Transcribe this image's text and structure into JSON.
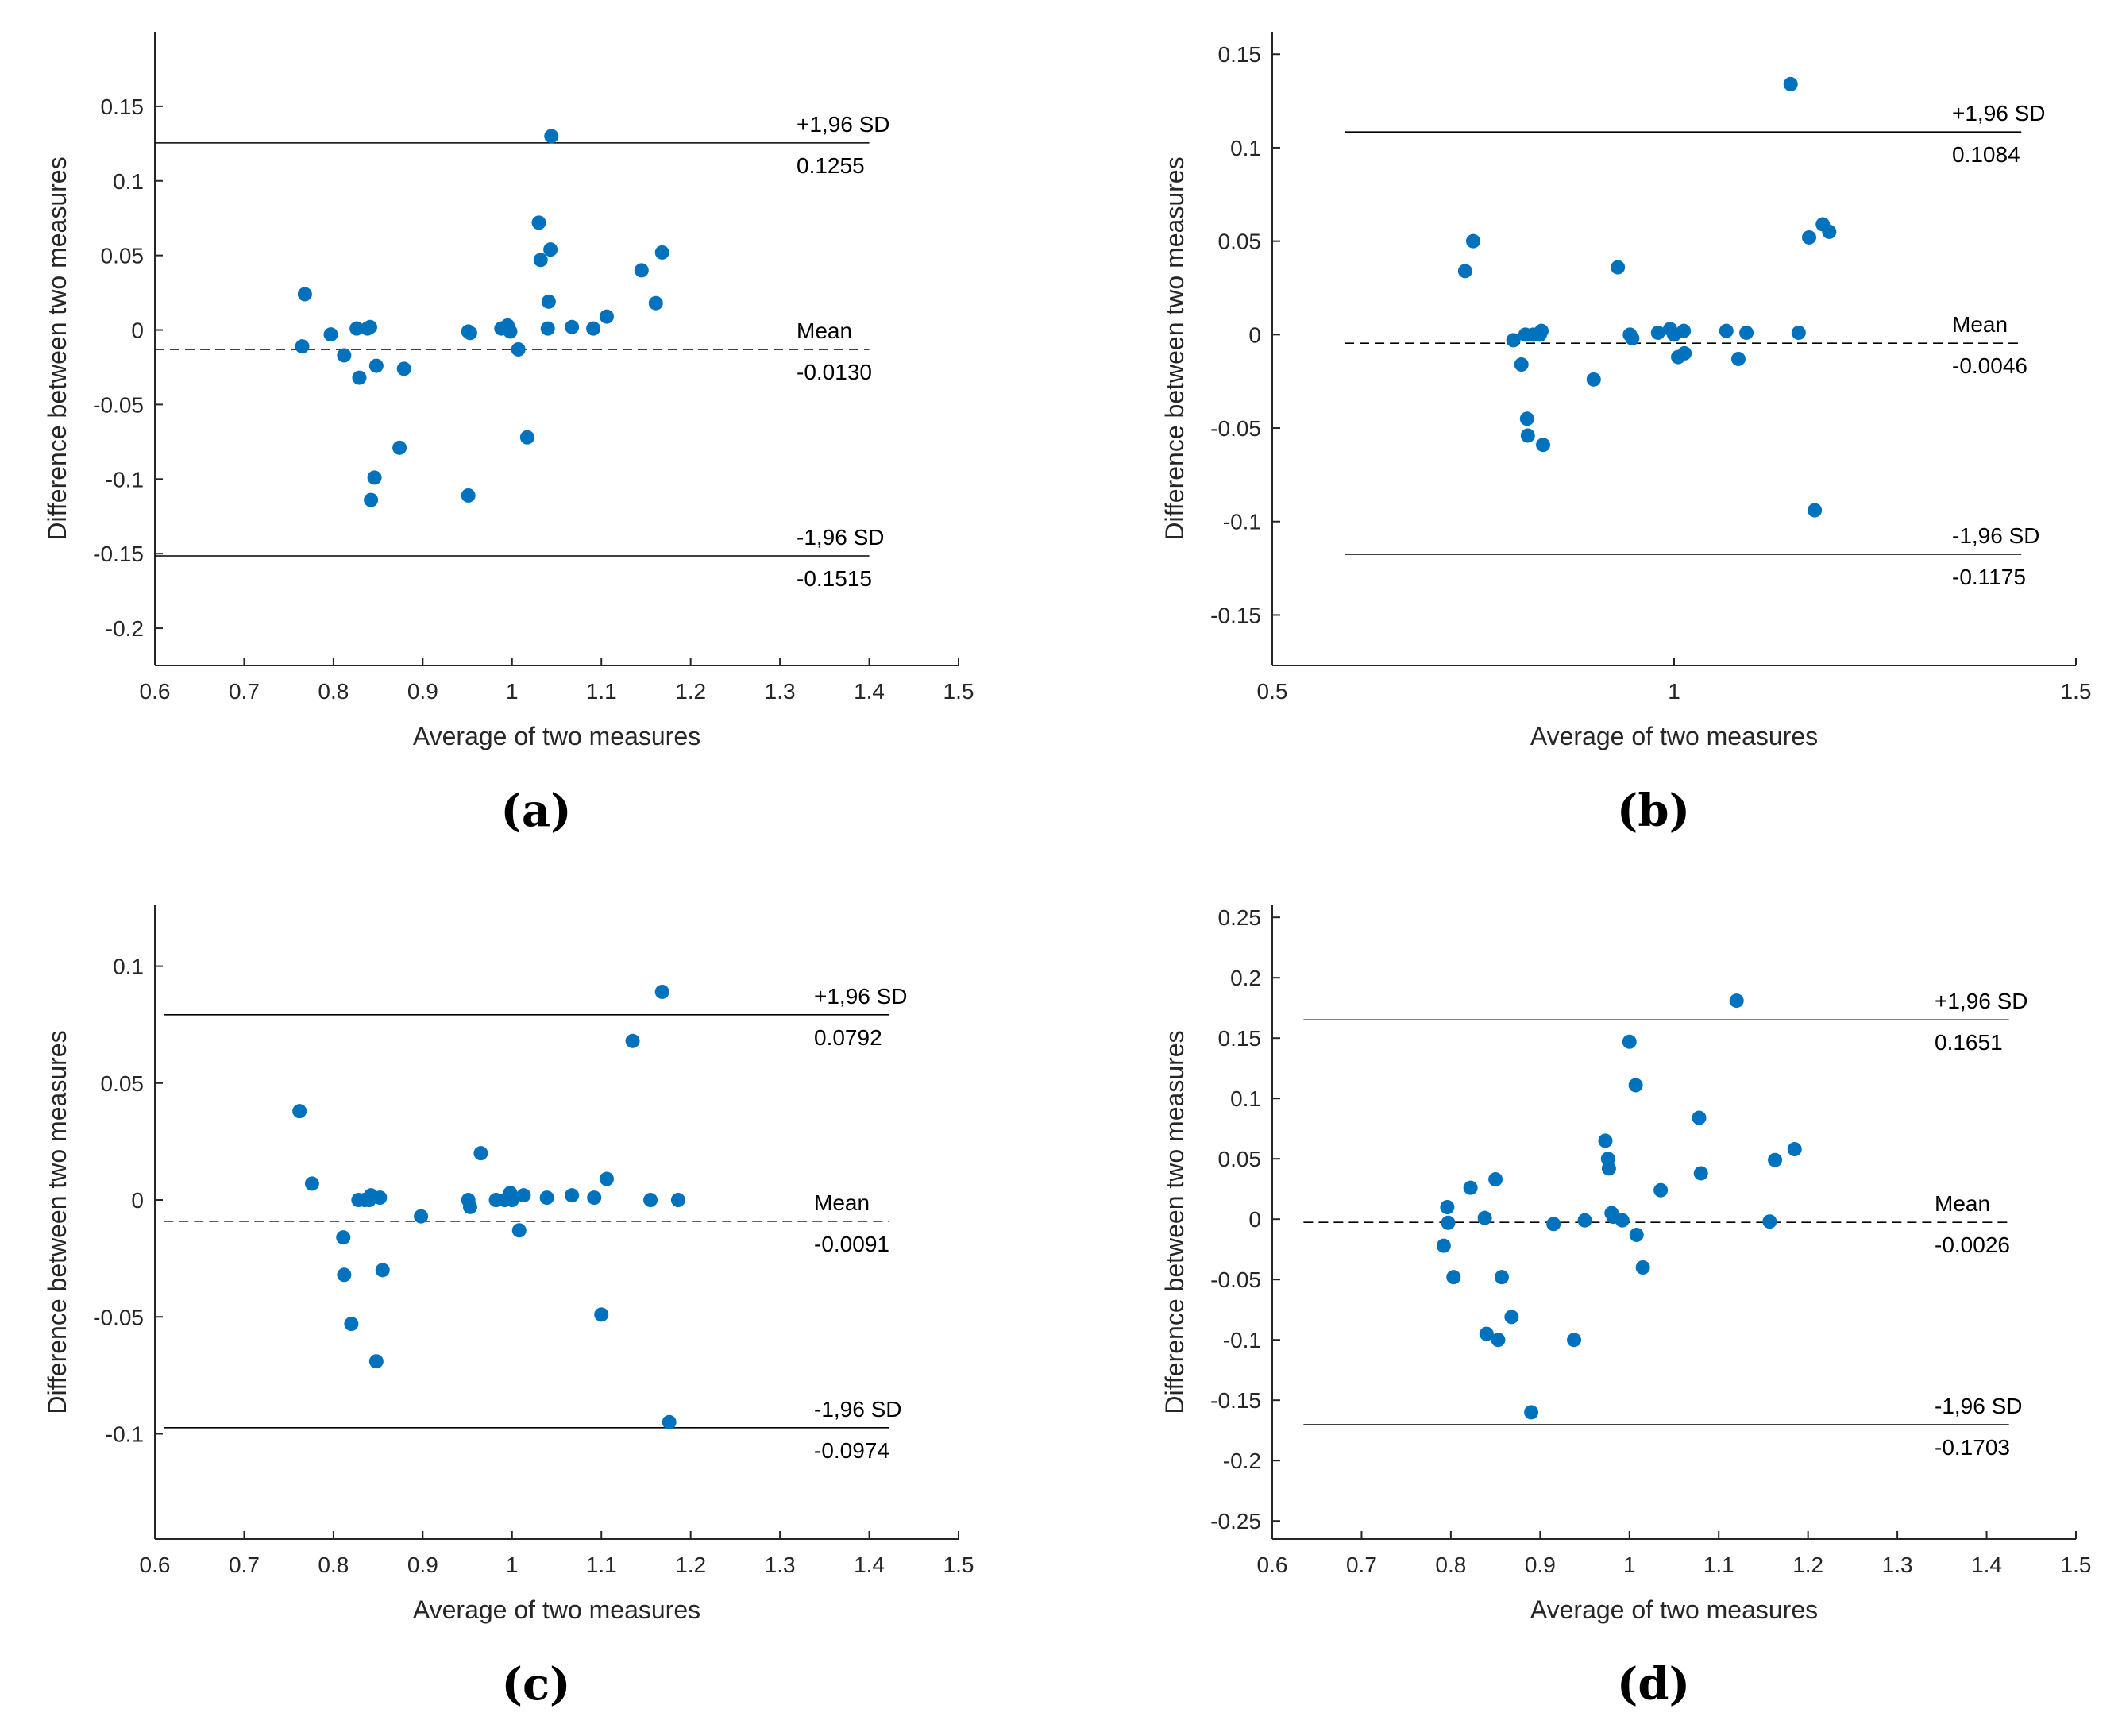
{
  "colors": {
    "point": "#0072BD",
    "axis": "#262626",
    "line": "#000000"
  },
  "chart_data": [
    {
      "type": "scatter",
      "panel_label": "(a)",
      "xlabel": "Average of two measures",
      "ylabel": "Difference between two measures",
      "xlim": [
        0.6,
        1.5
      ],
      "ylim": [
        -0.225,
        0.2
      ],
      "xticks": [
        0.6,
        0.7,
        0.8,
        0.9,
        1.0,
        1.1,
        1.2,
        1.3,
        1.4,
        1.5
      ],
      "xtick_labels": [
        "0.6",
        "0.7",
        "0.8",
        "0.9",
        "1",
        "1.1",
        "1.2",
        "1.3",
        "1.4",
        "1.5"
      ],
      "yticks": [
        0.15,
        0.1,
        0.05,
        0,
        -0.05,
        -0.1,
        -0.15,
        -0.2
      ],
      "ytick_labels": [
        "0.15",
        "0.1",
        "0.05",
        "0",
        "-0.05",
        "-0.1",
        "-0.15",
        "-0.2"
      ],
      "line_xrange": [
        0.6,
        1.4
      ],
      "upper": {
        "label": "+1,96 SD",
        "value": 0.1255,
        "value_label": "0.1255"
      },
      "mean": {
        "label": "Mean",
        "value": -0.013,
        "value_label": "-0.0130"
      },
      "lower": {
        "label": "-1,96 SD",
        "value": -0.1515,
        "value_label": "-0.1515"
      },
      "points": [
        [
          0.765,
          -0.011
        ],
        [
          0.768,
          0.024
        ],
        [
          0.797,
          -0.003
        ],
        [
          0.812,
          -0.017
        ],
        [
          0.826,
          0.001
        ],
        [
          0.829,
          -0.032
        ],
        [
          0.838,
          0.001
        ],
        [
          0.841,
          0.002
        ],
        [
          0.842,
          -0.114
        ],
        [
          0.846,
          -0.099
        ],
        [
          0.848,
          -0.024
        ],
        [
          0.874,
          -0.079
        ],
        [
          0.879,
          -0.026
        ],
        [
          0.951,
          -0.111
        ],
        [
          0.951,
          -0.001
        ],
        [
          0.953,
          -0.002
        ],
        [
          0.988,
          0.001
        ],
        [
          0.995,
          0.003
        ],
        [
          0.998,
          -0.001
        ],
        [
          1.007,
          -0.013
        ],
        [
          1.017,
          -0.072
        ],
        [
          1.03,
          0.072
        ],
        [
          1.032,
          0.047
        ],
        [
          1.04,
          0.001
        ],
        [
          1.041,
          0.019
        ],
        [
          1.043,
          0.054
        ],
        [
          1.044,
          0.13
        ],
        [
          1.067,
          0.002
        ],
        [
          1.091,
          0.001
        ],
        [
          1.106,
          0.009
        ],
        [
          1.145,
          0.04
        ],
        [
          1.161,
          0.018
        ],
        [
          1.168,
          0.052
        ]
      ]
    },
    {
      "type": "scatter",
      "panel_label": "(b)",
      "xlabel": "Average of two measures",
      "ylabel": "Difference between two measures",
      "xlim": [
        0.5,
        1.5
      ],
      "ylim": [
        -0.177,
        0.162
      ],
      "xticks": [
        0.5,
        1.0,
        1.5
      ],
      "xtick_labels": [
        "0.5",
        "1",
        "1.5"
      ],
      "yticks": [
        0.15,
        0.1,
        0.05,
        0,
        -0.05,
        -0.1,
        -0.15
      ],
      "ytick_labels": [
        "0.15",
        "0.1",
        "0.05",
        "0",
        "-0.05",
        "-0.1",
        "-0.15"
      ],
      "line_xrange": [
        0.59,
        1.432
      ],
      "upper": {
        "label": "+1,96 SD",
        "value": 0.1084,
        "value_label": "0.1084"
      },
      "mean": {
        "label": "Mean",
        "value": -0.0046,
        "value_label": "-0.0046"
      },
      "lower": {
        "label": "-1,96 SD",
        "value": -0.1175,
        "value_label": "-0.1175"
      },
      "points": [
        [
          0.74,
          0.034
        ],
        [
          0.75,
          0.05
        ],
        [
          0.8,
          -0.003
        ],
        [
          0.81,
          -0.016
        ],
        [
          0.815,
          0.0
        ],
        [
          0.817,
          -0.045
        ],
        [
          0.818,
          -0.054
        ],
        [
          0.825,
          0.0
        ],
        [
          0.833,
          0.0
        ],
        [
          0.835,
          0.002
        ],
        [
          0.837,
          -0.059
        ],
        [
          0.9,
          -0.024
        ],
        [
          0.93,
          0.036
        ],
        [
          0.945,
          0.0
        ],
        [
          0.948,
          -0.002
        ],
        [
          0.98,
          0.001
        ],
        [
          0.995,
          0.003
        ],
        [
          1.0,
          0.0
        ],
        [
          1.005,
          -0.012
        ],
        [
          1.012,
          0.002
        ],
        [
          1.013,
          -0.01
        ],
        [
          1.065,
          0.002
        ],
        [
          1.08,
          -0.013
        ],
        [
          1.09,
          0.001
        ],
        [
          1.145,
          0.134
        ],
        [
          1.155,
          0.001
        ],
        [
          1.168,
          0.052
        ],
        [
          1.175,
          -0.094
        ],
        [
          1.185,
          0.059
        ],
        [
          1.193,
          0.055
        ]
      ]
    },
    {
      "type": "scatter",
      "panel_label": "(c)",
      "xlabel": "Average of two measures",
      "ylabel": "Difference between two measures",
      "xlim": [
        0.6,
        1.5
      ],
      "ylim": [
        -0.145,
        0.126
      ],
      "xticks": [
        0.6,
        0.7,
        0.8,
        0.9,
        1.0,
        1.1,
        1.2,
        1.3,
        1.4,
        1.5
      ],
      "xtick_labels": [
        "0.6",
        "0.7",
        "0.8",
        "0.9",
        "1",
        "1.1",
        "1.2",
        "1.3",
        "1.4",
        "1.5"
      ],
      "yticks": [
        0.1,
        0.05,
        0,
        -0.05,
        -0.1
      ],
      "ytick_labels": [
        "0.1",
        "0.05",
        "0",
        "-0.05",
        "-0.1"
      ],
      "line_xrange": [
        0.61,
        1.422
      ],
      "upper": {
        "label": "+1,96 SD",
        "value": 0.0792,
        "value_label": "0.0792"
      },
      "mean": {
        "label": "Mean",
        "value": -0.0091,
        "value_label": "-0.0091"
      },
      "lower": {
        "label": "-1,96 SD",
        "value": -0.0974,
        "value_label": "-0.0974"
      },
      "points": [
        [
          0.762,
          0.038
        ],
        [
          0.776,
          0.007
        ],
        [
          0.811,
          -0.016
        ],
        [
          0.812,
          -0.032
        ],
        [
          0.82,
          -0.053
        ],
        [
          0.828,
          0.0
        ],
        [
          0.835,
          0.0
        ],
        [
          0.84,
          0.0
        ],
        [
          0.842,
          0.002
        ],
        [
          0.848,
          -0.069
        ],
        [
          0.852,
          0.001
        ],
        [
          0.855,
          -0.03
        ],
        [
          0.898,
          -0.007
        ],
        [
          0.951,
          0.0
        ],
        [
          0.953,
          -0.003
        ],
        [
          0.965,
          0.02
        ],
        [
          0.982,
          0.0
        ],
        [
          0.992,
          0.0
        ],
        [
          0.998,
          0.003
        ],
        [
          1.0,
          0.0
        ],
        [
          1.008,
          -0.013
        ],
        [
          1.013,
          0.002
        ],
        [
          1.039,
          0.001
        ],
        [
          1.067,
          0.002
        ],
        [
          1.092,
          0.001
        ],
        [
          1.1,
          -0.049
        ],
        [
          1.106,
          0.009
        ],
        [
          1.135,
          0.068
        ],
        [
          1.155,
          0.0
        ],
        [
          1.168,
          0.089
        ],
        [
          1.176,
          -0.095
        ],
        [
          1.186,
          0.0
        ]
      ]
    },
    {
      "type": "scatter",
      "panel_label": "(d)",
      "xlabel": "Average of two measures",
      "ylabel": "Difference between two measures",
      "xlim": [
        0.6,
        1.5
      ],
      "ylim": [
        -0.265,
        0.26
      ],
      "xticks": [
        0.6,
        0.7,
        0.8,
        0.9,
        1.0,
        1.1,
        1.2,
        1.3,
        1.4,
        1.5
      ],
      "xtick_labels": [
        "0.6",
        "0.7",
        "0.8",
        "0.9",
        "1",
        "1.1",
        "1.2",
        "1.3",
        "1.4",
        "1.5"
      ],
      "yticks": [
        0.25,
        0.2,
        0.15,
        0.1,
        0.05,
        0,
        -0.05,
        -0.1,
        -0.15,
        -0.2,
        -0.25
      ],
      "ytick_labels": [
        "0.25",
        "0.2",
        "0.15",
        "0.1",
        "0.05",
        "0",
        "-0.05",
        "-0.1",
        "-0.15",
        "-0.2",
        "-0.25"
      ],
      "line_xrange": [
        0.635,
        1.425
      ],
      "upper": {
        "label": "+1,96 SD",
        "value": 0.1651,
        "value_label": "0.1651"
      },
      "mean": {
        "label": "Mean",
        "value": -0.0026,
        "value_label": "-0.0026"
      },
      "lower": {
        "label": "-1,96 SD",
        "value": -0.1703,
        "value_label": "-0.1703"
      },
      "points": [
        [
          0.792,
          -0.022
        ],
        [
          0.796,
          0.01
        ],
        [
          0.797,
          -0.003
        ],
        [
          0.803,
          -0.048
        ],
        [
          0.822,
          0.026
        ],
        [
          0.838,
          0.001
        ],
        [
          0.84,
          -0.095
        ],
        [
          0.85,
          0.033
        ],
        [
          0.853,
          -0.1
        ],
        [
          0.857,
          -0.048
        ],
        [
          0.868,
          -0.081
        ],
        [
          0.89,
          -0.16
        ],
        [
          0.915,
          -0.004
        ],
        [
          0.938,
          -0.1
        ],
        [
          0.95,
          -0.001
        ],
        [
          0.973,
          0.065
        ],
        [
          0.976,
          0.05
        ],
        [
          0.977,
          0.042
        ],
        [
          0.98,
          0.005
        ],
        [
          0.982,
          0.002
        ],
        [
          0.992,
          -0.001
        ],
        [
          1.0,
          0.147
        ],
        [
          1.007,
          0.111
        ],
        [
          1.008,
          -0.013
        ],
        [
          1.015,
          -0.04
        ],
        [
          1.035,
          0.024
        ],
        [
          1.078,
          0.084
        ],
        [
          1.08,
          0.038
        ],
        [
          1.12,
          0.181
        ],
        [
          1.157,
          -0.002
        ],
        [
          1.163,
          0.049
        ],
        [
          1.185,
          0.058
        ]
      ]
    }
  ]
}
